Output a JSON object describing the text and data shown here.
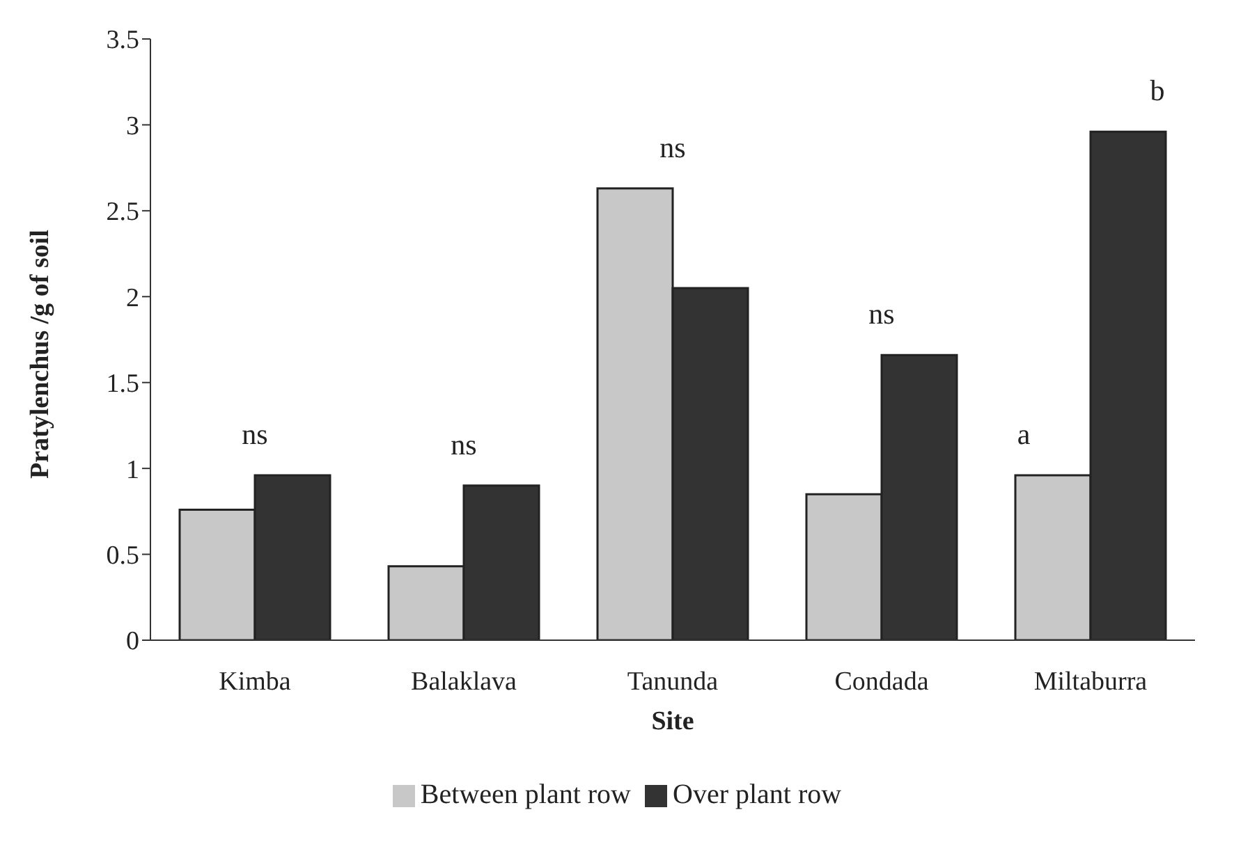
{
  "chart_data": {
    "type": "bar",
    "xlabel": "Site",
    "ylabel": "Pratylenchus /g of soil",
    "categories": [
      "Kimba",
      "Balaklava",
      "Tanunda",
      "Condada",
      "Miltaburra"
    ],
    "series": [
      {
        "name": "Between plant row",
        "color": "#c8c8c8",
        "values": [
          0.76,
          0.43,
          2.63,
          0.85,
          0.96
        ]
      },
      {
        "name": "Over plant row",
        "color": "#333333",
        "values": [
          0.96,
          0.9,
          2.05,
          1.66,
          2.96
        ]
      }
    ],
    "ylim": [
      0,
      3.5
    ],
    "yticks": [
      0,
      0.5,
      1,
      1.5,
      2,
      2.5,
      3,
      3.5
    ],
    "grid": false,
    "legend": "bottom",
    "annotations": [
      {
        "text": "ns",
        "x": "Kimba",
        "y": 0.96
      },
      {
        "text": "ns",
        "x": "Balaklava",
        "y": 0.9
      },
      {
        "text": "ns",
        "x": "Tanunda",
        "y": 2.63
      },
      {
        "text": "ns",
        "x": "Condada",
        "y": 1.66
      },
      {
        "text": "a",
        "x": "Miltaburra",
        "y": 0.96
      },
      {
        "text": "b",
        "x": "Miltaburra",
        "y": 2.96
      }
    ]
  }
}
